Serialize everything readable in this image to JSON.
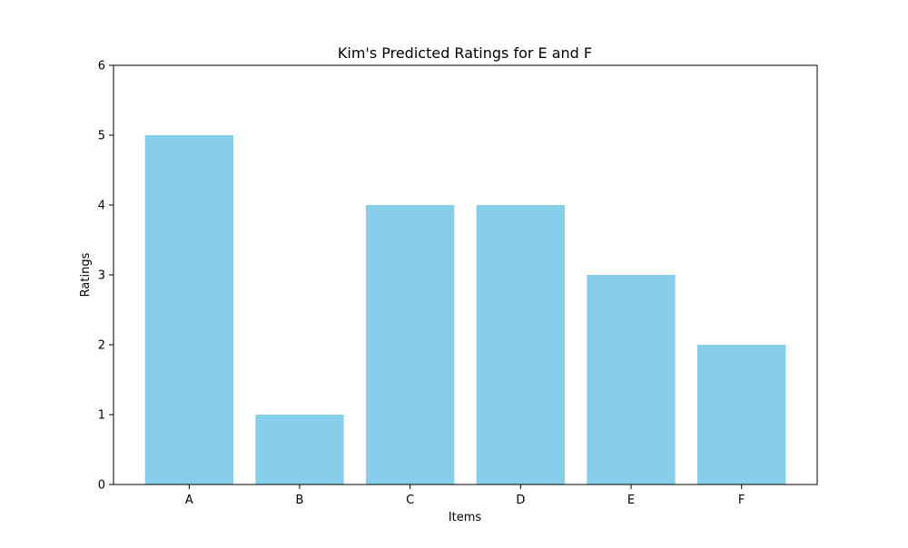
{
  "chart_data": {
    "type": "bar",
    "title": "Kim's Predicted Ratings for E and F",
    "xlabel": "Items",
    "ylabel": "Ratings",
    "categories": [
      "A",
      "B",
      "C",
      "D",
      "E",
      "F"
    ],
    "values": [
      5,
      1,
      4,
      4,
      3,
      2
    ],
    "ylim": [
      0,
      6
    ],
    "yticks": [
      0,
      1,
      2,
      3,
      4,
      5,
      6
    ],
    "bar_color": "#87ceeb",
    "grid": false,
    "legend": "none"
  }
}
